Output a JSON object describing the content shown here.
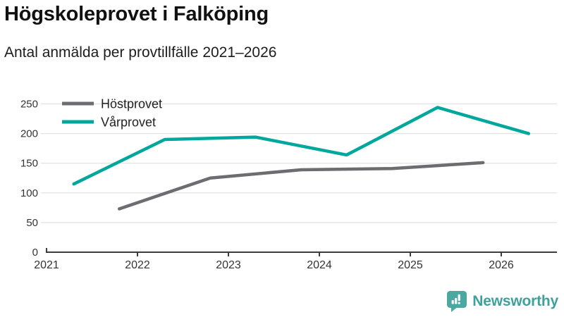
{
  "header": {
    "title": "Högskoleprovet i Falköping",
    "subtitle": "Antal anmälda per provtillfälle 2021–2026"
  },
  "chart_data": {
    "type": "line",
    "title": "Högskoleprovet i Falköping",
    "subtitle": "Antal anmälda per provtillfälle 2021–2026",
    "xlabel": "",
    "ylabel": "",
    "ylim": [
      0,
      250
    ],
    "yticks": [
      0,
      50,
      100,
      150,
      200,
      250
    ],
    "xticks": [
      2021,
      2022,
      2023,
      2024,
      2025,
      2026
    ],
    "grid": "horizontal",
    "legend_position": "top-left",
    "series": [
      {
        "name": "Höstprovet",
        "color": "#6c6c71",
        "x": [
          2021.8,
          2022.8,
          2023.8,
          2024.8,
          2025.8
        ],
        "values": [
          73,
          125,
          139,
          141,
          151
        ]
      },
      {
        "name": "Vårprovet",
        "color": "#00a79c",
        "x": [
          2021.3,
          2022.3,
          2023.3,
          2024.3,
          2025.3,
          2026.3
        ],
        "values": [
          115,
          190,
          194,
          164,
          244,
          200
        ]
      }
    ]
  },
  "branding": {
    "name": "Newsworthy",
    "icon": "newsworthy-speech-bubble-chart-icon",
    "wordmark_color": "#3fa19b",
    "icon_color": "#4ca7a1"
  },
  "colors": {
    "axis": "#3d3d3d",
    "grid": "#e4e4e4",
    "tick_label": "#333333",
    "legend_text": "#222222"
  }
}
